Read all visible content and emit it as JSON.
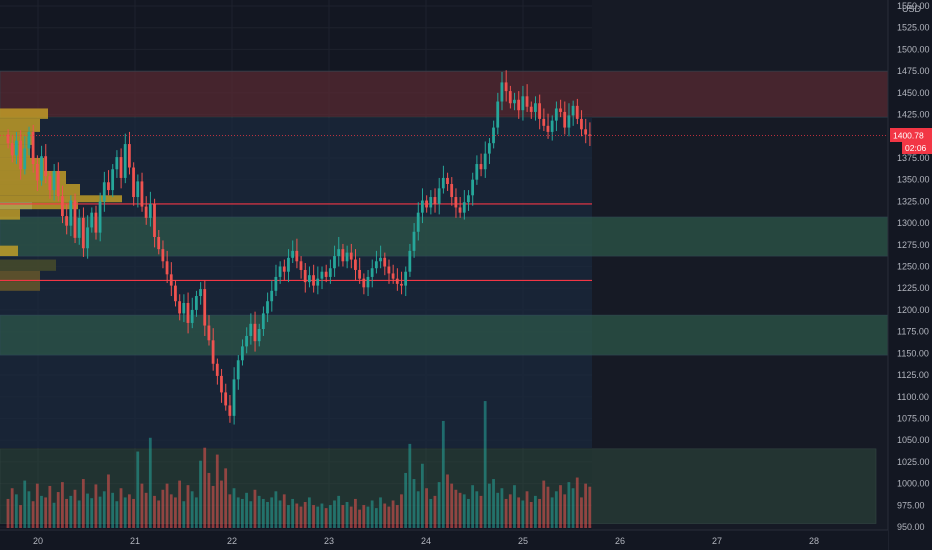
{
  "chart_data": {
    "type": "candlestick",
    "currency": "USD",
    "y_range": [
      950,
      1550
    ],
    "y_ticks": [
      "950.00",
      "975.00",
      "1000.00",
      "1025.00",
      "1050.00",
      "1075.00",
      "1100.00",
      "1125.00",
      "1150.00",
      "1175.00",
      "1200.00",
      "1225.00",
      "1250.00",
      "1275.00",
      "1300.00",
      "1325.00",
      "1350.00",
      "1375.00",
      "1400.00",
      "1425.00",
      "1450.00",
      "1475.00",
      "1500.00",
      "1525.00",
      "1550.00"
    ],
    "x_ticks": [
      "20",
      "21",
      "22",
      "23",
      "24",
      "25",
      "26",
      "27",
      "28"
    ],
    "last_price": "1400.78",
    "countdown": "02:06",
    "horizontal_lines": [
      1322,
      1234
    ],
    "zones": [
      {
        "name": "resistance-zone",
        "from": 1422,
        "to": 1475,
        "color": "#5b2a33"
      },
      {
        "name": "support-zone-upper",
        "from": 1262,
        "to": 1307,
        "color": "#2e5a4a"
      },
      {
        "name": "support-zone-lower",
        "from": 1148,
        "to": 1194,
        "color": "#2e5a4a"
      }
    ],
    "closes": [
      1392,
      1378,
      1395,
      1362,
      1386,
      1405,
      1368,
      1349,
      1377,
      1354,
      1338,
      1360,
      1331,
      1308,
      1297,
      1326,
      1283,
      1306,
      1271,
      1295,
      1312,
      1289,
      1325,
      1347,
      1338,
      1362,
      1376,
      1352,
      1391,
      1364,
      1330,
      1348,
      1319,
      1306,
      1322,
      1284,
      1270,
      1256,
      1241,
      1228,
      1210,
      1196,
      1208,
      1185,
      1200,
      1216,
      1224,
      1182,
      1165,
      1138,
      1124,
      1105,
      1090,
      1078,
      1120,
      1142,
      1158,
      1170,
      1184,
      1164,
      1178,
      1196,
      1210,
      1222,
      1238,
      1250,
      1244,
      1260,
      1268,
      1256,
      1246,
      1232,
      1240,
      1228,
      1236,
      1244,
      1238,
      1248,
      1262,
      1270,
      1256,
      1266,
      1258,
      1246,
      1236,
      1226,
      1238,
      1248,
      1256,
      1260,
      1250,
      1242,
      1236,
      1230,
      1228,
      1244,
      1268,
      1290,
      1312,
      1326,
      1318,
      1330,
      1322,
      1340,
      1352,
      1345,
      1330,
      1318,
      1312,
      1324,
      1332,
      1350,
      1368,
      1362,
      1380,
      1392,
      1410,
      1440,
      1462,
      1452,
      1438,
      1442,
      1430,
      1446,
      1434,
      1428,
      1438,
      1420,
      1412,
      1405,
      1418,
      1432,
      1428,
      1410,
      1424,
      1435,
      1420,
      1408,
      1402,
      1400.78
    ],
    "volumes": [
      38,
      52,
      44,
      30,
      62,
      48,
      35,
      58,
      42,
      40,
      55,
      33,
      47,
      60,
      38,
      42,
      50,
      36,
      64,
      45,
      39,
      57,
      41,
      48,
      70,
      46,
      35,
      52,
      40,
      44,
      38,
      100,
      58,
      46,
      118,
      42,
      36,
      50,
      58,
      44,
      40,
      62,
      35,
      56,
      48,
      40,
      88,
      105,
      72,
      55,
      96,
      62,
      78,
      44,
      52,
      40,
      38,
      46,
      35,
      50,
      42,
      38,
      34,
      40,
      48,
      36,
      44,
      30,
      38,
      32,
      28,
      34,
      40,
      30,
      28,
      32,
      26,
      30,
      36,
      42,
      30,
      34,
      28,
      38,
      24,
      30,
      28,
      36,
      26,
      40,
      32,
      28,
      36,
      30,
      44,
      72,
      110,
      64,
      48,
      84,
      52,
      38,
      42,
      60,
      140,
      70,
      58,
      50,
      46,
      44,
      38,
      56,
      48,
      42,
      166,
      58,
      64,
      46,
      52,
      38,
      44,
      56,
      40,
      36,
      48,
      34,
      42,
      38,
      62,
      54,
      40,
      48,
      56,
      44,
      60,
      52,
      66,
      40,
      58,
      54
    ],
    "volume_zone": {
      "from_y": 954,
      "to_y": 1040
    }
  }
}
